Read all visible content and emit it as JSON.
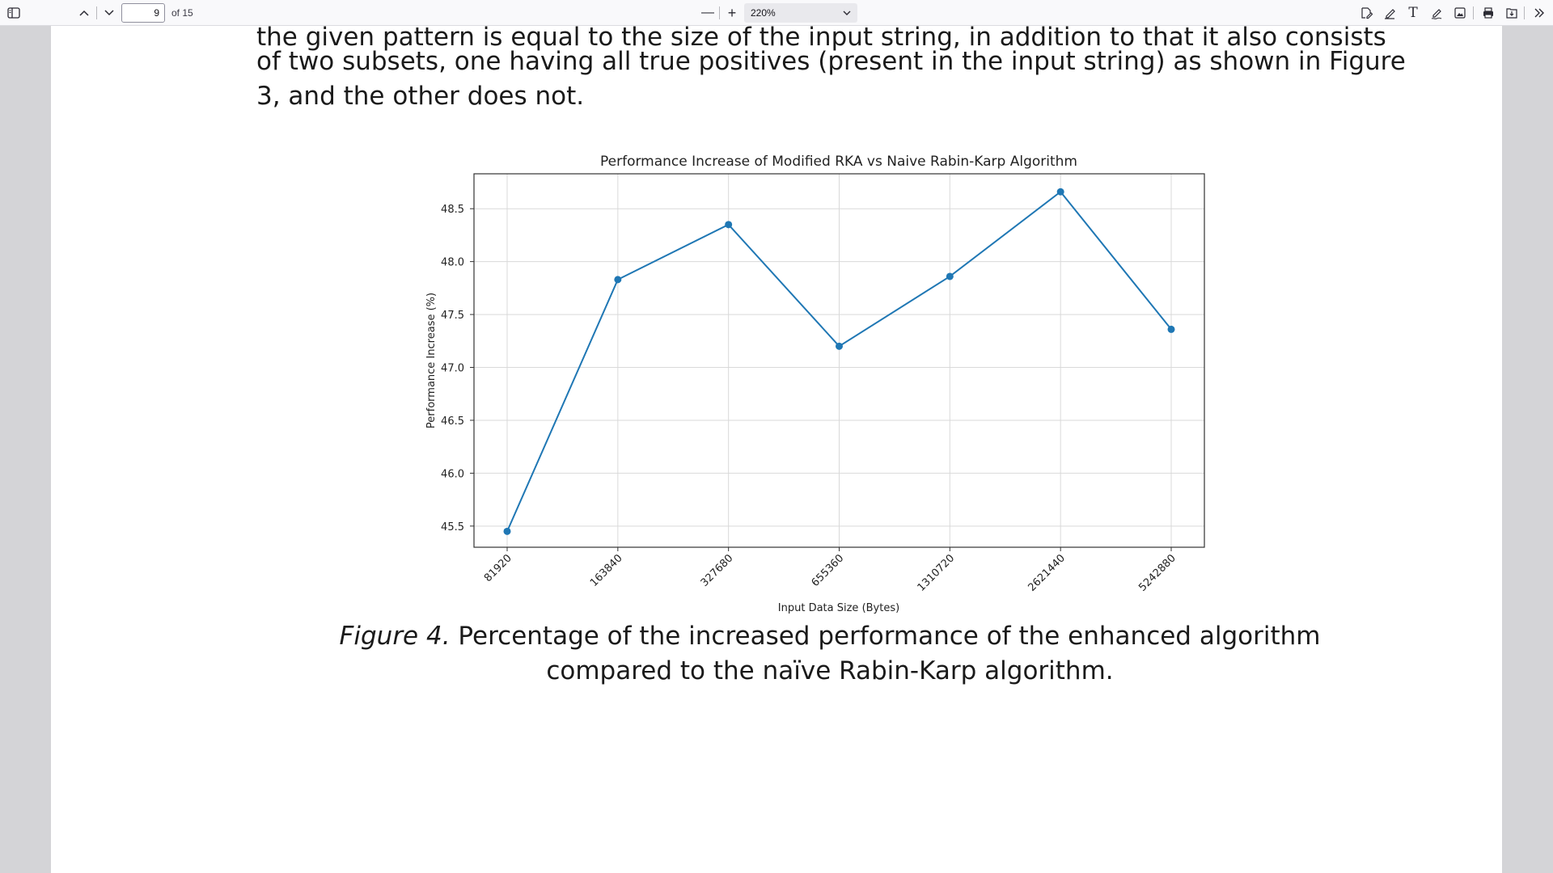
{
  "toolbar": {
    "page_number": "9",
    "page_count": "of 15",
    "zoom": "220%",
    "zoom_out_label": "—",
    "zoom_in_label": "+",
    "icons": [
      "sidebar-toggle-icon",
      "chevron-up-icon",
      "chevron-down-icon",
      "edit-text-icon",
      "draw-icon",
      "text-icon",
      "signature-icon",
      "image-icon",
      "print-icon",
      "save-icon",
      "more-tools-icon"
    ]
  },
  "document": {
    "line_1": "the given pattern is equal to the size of the input string, in addition to that it also consists",
    "line_2": "of two subsets, one having all true positives (present in the input string) as shown in Figure",
    "line_3": "3, and the other does not.",
    "caption_label": "Figure 4.",
    "caption_line_1": " Percentage of the increased performance of the enhanced algorithm",
    "caption_line_2": "compared to the naïve Rabin-Karp algorithm."
  },
  "chart_data": {
    "type": "line",
    "title": "Performance Increase of Modified RKA vs Naive Rabin-Karp Algorithm",
    "xlabel": "Input Data Size (Bytes)",
    "ylabel": "Performance Increase (%)",
    "categories": [
      "81920",
      "163840",
      "327680",
      "655360",
      "1310720",
      "2621440",
      "5242880"
    ],
    "values": [
      45.45,
      47.83,
      48.35,
      47.2,
      47.86,
      48.66,
      47.36
    ],
    "yticks": [
      "45.5",
      "46.0",
      "46.5",
      "47.0",
      "47.5",
      "48.0",
      "48.5"
    ],
    "ytick_values": [
      45.5,
      46.0,
      46.5,
      47.0,
      47.5,
      48.0,
      48.5
    ],
    "ylim": [
      45.3,
      48.83
    ],
    "grid": true,
    "line_color": "#1f77b4"
  }
}
